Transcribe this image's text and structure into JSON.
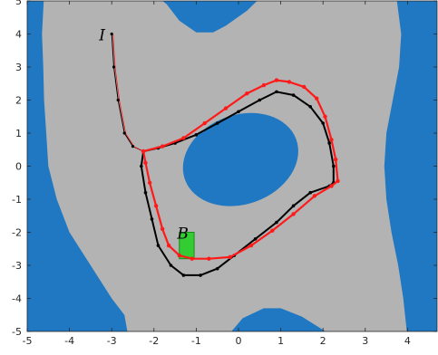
{
  "chart_data": {
    "type": "scatter",
    "title": "",
    "xlabel": "",
    "ylabel": "",
    "xlim": [
      -5,
      4.7
    ],
    "ylim": [
      -5,
      5
    ],
    "xticks": [
      "-5",
      "-4",
      "-3",
      "-2",
      "-1",
      "0",
      "1",
      "2",
      "3",
      "4"
    ],
    "yticks": [
      "5",
      "4",
      "3",
      "2",
      "1",
      "0",
      "-1",
      "-2",
      "-3",
      "-4",
      "-5"
    ],
    "grid": false,
    "legend": null,
    "colors": {
      "outer_band": "#1f78c1",
      "safe_region": "#b3b3b3",
      "inner_obstacle": "#1f78c1",
      "red_trajectory": "#ff1a1a",
      "reference_cycle": "#000000",
      "target_box": "#33cc33",
      "target_box_edge": "#1a8c1a"
    },
    "annotations": [
      {
        "text": "I",
        "x": -3.0,
        "y": 4.0
      },
      {
        "text": "B",
        "x": -1.15,
        "y": -2.0
      }
    ],
    "target_box": {
      "x0": -1.4,
      "x1": -1.05,
      "y0": -2.8,
      "y1": -2.0
    },
    "initial_segment": [
      [
        -3.0,
        4.0
      ],
      [
        -2.95,
        3.0
      ],
      [
        -2.85,
        2.0
      ],
      [
        -2.7,
        1.0
      ],
      [
        -2.5,
        0.6
      ],
      [
        -2.25,
        0.45
      ]
    ],
    "series": [
      {
        "name": "",
        "marker": "dots",
        "color": "#000000",
        "points": [
          [
            -2.25,
            0.45
          ],
          [
            -1.9,
            0.55
          ],
          [
            -1.5,
            0.7
          ],
          [
            -1.0,
            0.95
          ],
          [
            -0.5,
            1.3
          ],
          [
            0.0,
            1.65
          ],
          [
            0.5,
            2.0
          ],
          [
            0.9,
            2.25
          ],
          [
            1.3,
            2.15
          ],
          [
            1.7,
            1.8
          ],
          [
            2.0,
            1.3
          ],
          [
            2.15,
            0.7
          ],
          [
            2.25,
            0.0
          ],
          [
            2.25,
            -0.5
          ],
          [
            2.15,
            -0.6
          ],
          [
            1.7,
            -0.8
          ],
          [
            1.3,
            -1.2
          ],
          [
            0.9,
            -1.7
          ],
          [
            0.4,
            -2.2
          ],
          [
            -0.1,
            -2.7
          ],
          [
            -0.5,
            -3.1
          ],
          [
            -0.9,
            -3.3
          ],
          [
            -1.3,
            -3.3
          ],
          [
            -1.6,
            -3.0
          ],
          [
            -1.9,
            -2.4
          ],
          [
            -2.05,
            -1.6
          ],
          [
            -2.2,
            -0.8
          ],
          [
            -2.3,
            0.0
          ],
          [
            -2.25,
            0.45
          ]
        ]
      },
      {
        "name": "",
        "marker": "dots",
        "color": "#ff1a1a",
        "points": [
          [
            -2.25,
            0.45
          ],
          [
            -1.8,
            0.6
          ],
          [
            -1.3,
            0.85
          ],
          [
            -0.8,
            1.3
          ],
          [
            -0.3,
            1.75
          ],
          [
            0.2,
            2.2
          ],
          [
            0.6,
            2.45
          ],
          [
            0.9,
            2.6
          ],
          [
            1.2,
            2.55
          ],
          [
            1.55,
            2.4
          ],
          [
            1.85,
            2.05
          ],
          [
            2.05,
            1.5
          ],
          [
            2.2,
            0.8
          ],
          [
            2.3,
            0.2
          ],
          [
            2.35,
            -0.45
          ],
          [
            2.2,
            -0.6
          ],
          [
            1.8,
            -0.9
          ],
          [
            1.3,
            -1.45
          ],
          [
            0.8,
            -1.95
          ],
          [
            0.3,
            -2.4
          ],
          [
            -0.2,
            -2.75
          ],
          [
            -0.7,
            -2.8
          ],
          [
            -1.1,
            -2.8
          ],
          [
            -1.4,
            -2.7
          ],
          [
            -1.65,
            -2.4
          ],
          [
            -1.8,
            -1.9
          ],
          [
            -1.95,
            -1.2
          ],
          [
            -2.1,
            -0.5
          ],
          [
            -2.2,
            0.1
          ],
          [
            -2.25,
            0.45
          ]
        ]
      }
    ]
  }
}
